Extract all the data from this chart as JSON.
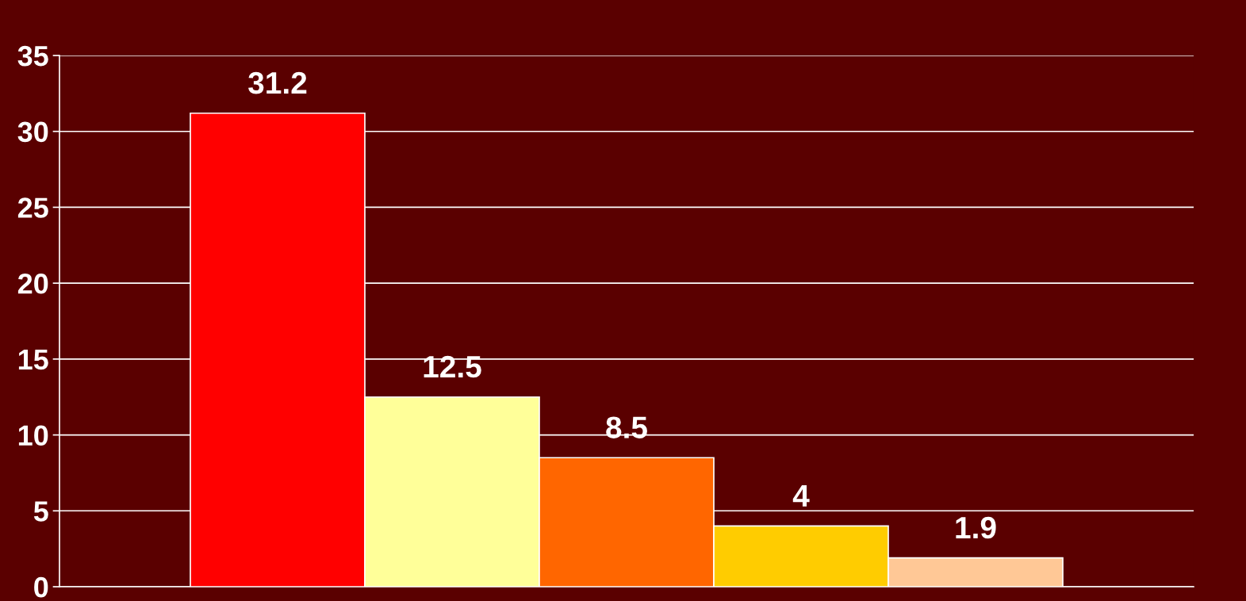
{
  "chart_data": {
    "type": "bar",
    "categories": [
      null,
      null,
      null,
      null,
      null
    ],
    "values": [
      31.2,
      12.5,
      8.5,
      4,
      1.9
    ],
    "colors": [
      "#ff0000",
      "#ffff99",
      "#ff6600",
      "#ffcc00",
      "#ffc896"
    ],
    "ylim": [
      0,
      35
    ],
    "yticks": [
      0,
      5,
      10,
      15,
      20,
      25,
      30,
      35
    ],
    "grid": "y",
    "data_labels": true
  }
}
